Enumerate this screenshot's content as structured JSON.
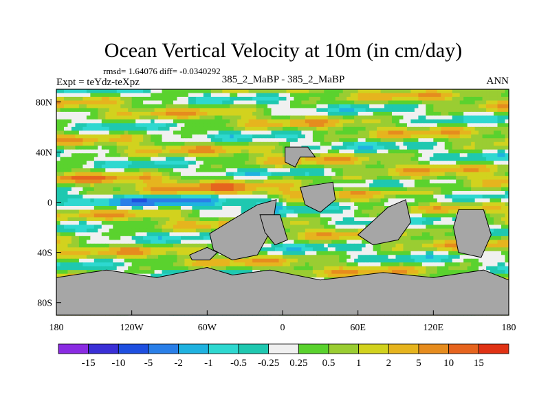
{
  "chart_data": {
    "type": "heatmap",
    "title": "Ocean Vertical Velocity at 10m (in cm/day)",
    "stats": "rmsd= 1.64076 diff= -0.0340292",
    "left_label": "Expt = teYdz-teXpz",
    "center_label": "385_2_MaBP - 385_2_MaBP",
    "right_label": "ANN",
    "x_axis": {
      "range": [
        -180,
        180
      ],
      "ticks": [
        -180,
        -120,
        -60,
        0,
        60,
        120,
        180
      ],
      "tick_labels": [
        "180",
        "120W",
        "60W",
        "0",
        "60E",
        "120E",
        "180"
      ]
    },
    "y_axis": {
      "range": [
        -90,
        90
      ],
      "ticks": [
        80,
        40,
        0,
        -40,
        -80
      ],
      "tick_labels": [
        "80N",
        "40N",
        "0",
        "40S",
        "80S"
      ]
    },
    "colorbar": {
      "labels": [
        "-15",
        "-10",
        "-5",
        "-2",
        "-1",
        "-0.5",
        "-0.25",
        "0.25",
        "0.5",
        "1",
        "2",
        "5",
        "10",
        "15"
      ],
      "colors": [
        "#8a2be2",
        "#3a2fd6",
        "#1e4fe0",
        "#2a7fe8",
        "#1fb2e0",
        "#2ed8d0",
        "#1fc8b0",
        "#f0f0f0",
        "#5ad22e",
        "#9acd32",
        "#d2d21e",
        "#e6b41e",
        "#e68c1e",
        "#e6641e",
        "#e03214"
      ]
    },
    "land_color": "#a6a6a6"
  }
}
